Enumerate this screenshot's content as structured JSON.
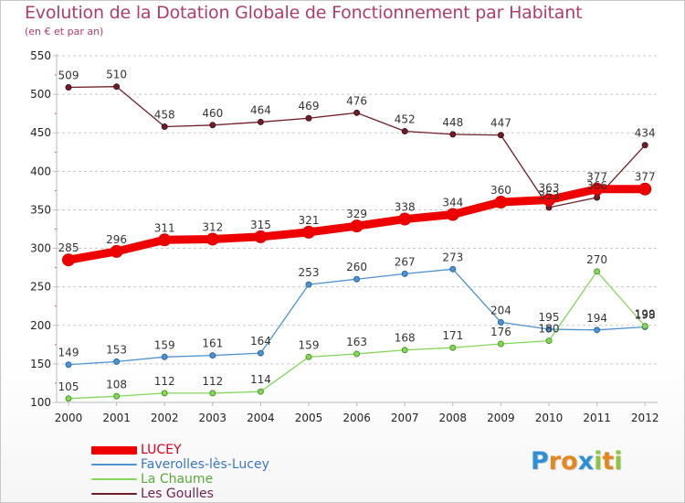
{
  "title": "Evolution de la Dotation Globale de Fonctionnement par Habitant",
  "subtitle": "(en € et par an)",
  "logo": {
    "letters": [
      {
        "ch": "P",
        "color": "#2e8fd6"
      },
      {
        "ch": "r",
        "color": "#e5861f"
      },
      {
        "ch": "o",
        "color": "#e5861f"
      },
      {
        "ch": "x",
        "color": "#2e8fd6"
      },
      {
        "ch": "i",
        "color": "#8cc63f"
      },
      {
        "ch": "t",
        "color": "#e5861f"
      },
      {
        "ch": "i",
        "color": "#8cc63f"
      }
    ]
  },
  "chart_data": {
    "type": "line",
    "title": "Evolution de la Dotation Globale de Fonctionnement par Habitant",
    "subtitle": "(en € et par an)",
    "x": [
      "2000",
      "2001",
      "2002",
      "2003",
      "2004",
      "2005",
      "2006",
      "2007",
      "2008",
      "2009",
      "2010",
      "2011",
      "2012"
    ],
    "ylim": [
      100,
      550
    ],
    "yticks": [
      100,
      150,
      200,
      250,
      300,
      350,
      400,
      450,
      500,
      550
    ],
    "grid": "horizontal",
    "legend": "bottom-left",
    "series": [
      {
        "name": "LUCEY",
        "color": "#ee0000",
        "values": [
          285,
          296,
          311,
          312,
          315,
          321,
          329,
          338,
          344,
          360,
          363,
          377,
          377
        ]
      },
      {
        "name": "Faverolles-lès-Lucey",
        "color": "#4c93cf",
        "values": [
          149,
          153,
          159,
          161,
          164,
          253,
          260,
          267,
          273,
          204,
          195,
          194,
          198
        ]
      },
      {
        "name": "La Chaume",
        "color": "#84d65a",
        "values": [
          105,
          108,
          112,
          112,
          114,
          159,
          163,
          168,
          171,
          176,
          180,
          270,
          199
        ]
      },
      {
        "name": "Les Goulles",
        "color": "#6e1e28",
        "values": [
          509,
          510,
          458,
          460,
          464,
          469,
          476,
          452,
          448,
          447,
          353,
          366,
          434
        ]
      }
    ]
  }
}
